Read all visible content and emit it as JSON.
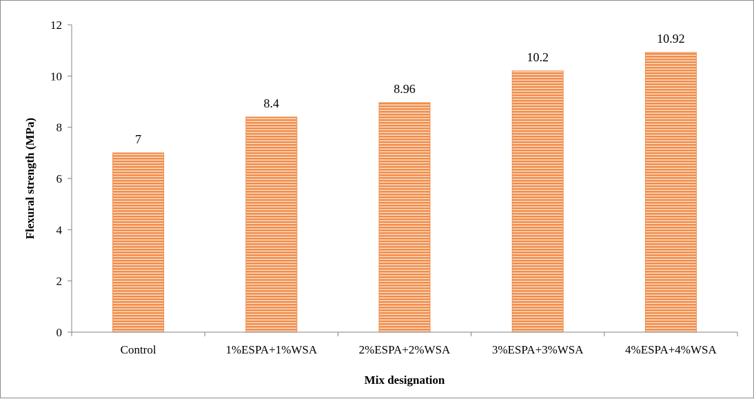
{
  "chart_data": {
    "type": "bar",
    "categories": [
      "Control",
      "1%ESPA+1%WSA",
      "2%ESPA+2%WSA",
      "3%ESPA+3%WSA",
      "4%ESPA+4%WSA"
    ],
    "values": [
      7,
      8.4,
      8.96,
      10.2,
      10.92
    ],
    "data_labels": [
      "7",
      "8.4",
      "8.96",
      "10.2",
      "10.92"
    ],
    "xlabel": "Mix designation",
    "ylabel": "Flexural strength (MPa)",
    "ylim": [
      0,
      12
    ],
    "yticks": [
      "0",
      "2",
      "4",
      "6",
      "8",
      "10",
      "12"
    ],
    "grid": false,
    "legend": "none",
    "colors": {
      "bar_fill": "#f08c4a",
      "bar_stripe": "#fde3cf",
      "axis": "#808080"
    }
  }
}
